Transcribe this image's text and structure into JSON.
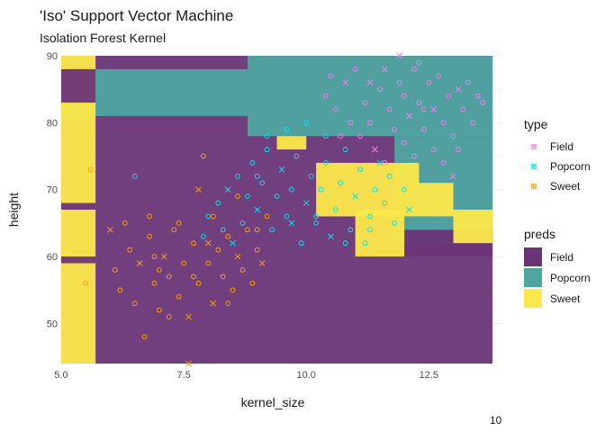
{
  "chart_data": {
    "type": "scatter",
    "title": "'Iso' Support Vector Machine",
    "subtitle": "Isolation Forest Kernel",
    "xlabel": "kernel_size",
    "ylabel": "height",
    "xlim": [
      5.0,
      14.0
    ],
    "ylim": [
      44,
      90
    ],
    "x_ticks": [
      5.0,
      7.5,
      10.0,
      12.5
    ],
    "x_tick_labels": [
      "5.0",
      "7.5",
      "10.0",
      "12.5"
    ],
    "y_ticks": [
      50,
      60,
      70,
      80,
      90
    ],
    "y_tick_labels": [
      "50",
      "60",
      "70",
      "80",
      "90"
    ],
    "grid": true,
    "footnote": "10",
    "legend_placement": "right",
    "legend_type": {
      "title": "type",
      "items": [
        {
          "label": "Field",
          "color": "#EE82EE"
        },
        {
          "label": "Popcorn",
          "color": "#00E5EE"
        },
        {
          "label": "Sweet",
          "color": "#FF9F00"
        }
      ]
    },
    "legend_preds": {
      "title": "preds",
      "items": [
        {
          "label": "Field",
          "color": "#6A3577"
        },
        {
          "label": "Popcorn",
          "color": "#4FA5A2"
        },
        {
          "label": "Sweet",
          "color": "#FCE84A"
        }
      ]
    },
    "regions": [
      {
        "pred": "Field",
        "x": [
          5.0,
          13.8
        ],
        "y": [
          44,
          90
        ]
      },
      {
        "pred": "Popcorn",
        "x": [
          5.0,
          8.8
        ],
        "y": [
          81,
          88
        ]
      },
      {
        "pred": "Popcorn",
        "x": [
          8.8,
          13.8
        ],
        "y": [
          78,
          90
        ]
      },
      {
        "pred": "Popcorn",
        "x": [
          11.8,
          13.8
        ],
        "y": [
          62,
          78
        ]
      },
      {
        "pred": "Field",
        "x": [
          12.0,
          13.8
        ],
        "y": [
          60,
          64
        ]
      },
      {
        "pred": "Sweet",
        "x": [
          5.0,
          5.7
        ],
        "y": [
          44,
          90
        ]
      },
      {
        "pred": "Field",
        "x": [
          5.0,
          5.7
        ],
        "y": [
          83,
          88
        ]
      },
      {
        "pred": "Field",
        "x": [
          5.0,
          5.7
        ],
        "y": [
          67,
          68
        ]
      },
      {
        "pred": "Field",
        "x": [
          5.0,
          5.7
        ],
        "y": [
          59,
          60
        ]
      },
      {
        "pred": "Sweet",
        "x": [
          10.2,
          12.3
        ],
        "y": [
          66,
          74
        ]
      },
      {
        "pred": "Sweet",
        "x": [
          11.0,
          12.0
        ],
        "y": [
          60,
          67
        ]
      },
      {
        "pred": "Sweet",
        "x": [
          12.3,
          13.0
        ],
        "y": [
          66,
          71
        ]
      },
      {
        "pred": "Sweet",
        "x": [
          13.0,
          13.8
        ],
        "y": [
          62,
          67
        ]
      },
      {
        "pred": "Sweet",
        "x": [
          9.4,
          10.0
        ],
        "y": [
          76,
          78
        ]
      }
    ],
    "series": [
      {
        "name": "Field",
        "color": "#EE82EE",
        "points": [
          [
            10.4,
            84
          ],
          [
            10.6,
            82
          ],
          [
            10.8,
            86
          ],
          [
            11.0,
            88
          ],
          [
            11.2,
            83
          ],
          [
            11.3,
            80
          ],
          [
            11.5,
            85
          ],
          [
            11.6,
            88
          ],
          [
            11.7,
            82
          ],
          [
            11.8,
            79
          ],
          [
            11.9,
            86
          ],
          [
            12.0,
            84
          ],
          [
            12.1,
            81
          ],
          [
            12.2,
            88
          ],
          [
            12.3,
            83
          ],
          [
            12.4,
            79
          ],
          [
            12.5,
            86
          ],
          [
            12.6,
            82
          ],
          [
            12.7,
            87
          ],
          [
            12.8,
            80
          ],
          [
            12.9,
            84
          ],
          [
            13.0,
            78
          ],
          [
            13.1,
            85
          ],
          [
            13.2,
            82
          ],
          [
            13.3,
            86
          ],
          [
            13.4,
            80
          ],
          [
            13.6,
            83
          ],
          [
            11.4,
            76
          ],
          [
            11.6,
            74
          ],
          [
            12.0,
            77
          ],
          [
            12.2,
            75
          ],
          [
            12.6,
            76
          ],
          [
            13.0,
            72
          ],
          [
            12.8,
            74
          ],
          [
            11.1,
            78
          ],
          [
            10.9,
            80
          ],
          [
            10.7,
            78
          ],
          [
            11.9,
            90
          ],
          [
            12.3,
            89
          ],
          [
            13.1,
            76
          ],
          [
            13.5,
            84
          ],
          [
            12.4,
            82
          ],
          [
            11.3,
            86
          ],
          [
            10.5,
            87
          ]
        ]
      },
      {
        "name": "Popcorn",
        "color": "#00E5EE",
        "points": [
          [
            8.0,
            66
          ],
          [
            8.2,
            68
          ],
          [
            8.4,
            70
          ],
          [
            8.6,
            72
          ],
          [
            8.7,
            65
          ],
          [
            8.8,
            69
          ],
          [
            8.9,
            74
          ],
          [
            9.0,
            67
          ],
          [
            9.1,
            71
          ],
          [
            9.2,
            76
          ],
          [
            9.3,
            64
          ],
          [
            9.4,
            69
          ],
          [
            9.5,
            73
          ],
          [
            9.6,
            66
          ],
          [
            9.7,
            70
          ],
          [
            9.8,
            75
          ],
          [
            9.9,
            62
          ],
          [
            10.0,
            68
          ],
          [
            10.1,
            72
          ],
          [
            10.2,
            65
          ],
          [
            10.3,
            70
          ],
          [
            10.4,
            74
          ],
          [
            10.5,
            63
          ],
          [
            10.6,
            67
          ],
          [
            10.7,
            71
          ],
          [
            10.8,
            76
          ],
          [
            10.9,
            64
          ],
          [
            11.0,
            69
          ],
          [
            11.1,
            73
          ],
          [
            11.2,
            62
          ],
          [
            11.3,
            66
          ],
          [
            11.4,
            70
          ],
          [
            11.5,
            74
          ],
          [
            11.6,
            68
          ],
          [
            11.7,
            72
          ],
          [
            11.8,
            65
          ],
          [
            12.0,
            70
          ],
          [
            12.1,
            67
          ],
          [
            9.2,
            78
          ],
          [
            9.6,
            79
          ],
          [
            10.0,
            80
          ],
          [
            10.4,
            78
          ],
          [
            8.5,
            62
          ],
          [
            8.3,
            64
          ],
          [
            7.9,
            63
          ],
          [
            6.5,
            72
          ],
          [
            9.0,
            72
          ],
          [
            9.7,
            65
          ],
          [
            10.2,
            66
          ],
          [
            10.8,
            62
          ],
          [
            11.3,
            64
          ]
        ]
      },
      {
        "name": "Sweet",
        "color": "#FF9F00",
        "points": [
          [
            5.5,
            56
          ],
          [
            5.6,
            73
          ],
          [
            6.0,
            64
          ],
          [
            6.1,
            58
          ],
          [
            6.2,
            55
          ],
          [
            6.4,
            61
          ],
          [
            6.5,
            53
          ],
          [
            6.6,
            59
          ],
          [
            6.7,
            48
          ],
          [
            6.8,
            63
          ],
          [
            6.9,
            56
          ],
          [
            7.0,
            52
          ],
          [
            7.1,
            60
          ],
          [
            7.2,
            57
          ],
          [
            7.3,
            64
          ],
          [
            7.4,
            54
          ],
          [
            7.5,
            59
          ],
          [
            7.6,
            51
          ],
          [
            7.7,
            62
          ],
          [
            7.8,
            56
          ],
          [
            7.9,
            75
          ],
          [
            8.0,
            59
          ],
          [
            8.1,
            53
          ],
          [
            8.2,
            61
          ],
          [
            8.3,
            57
          ],
          [
            8.4,
            63
          ],
          [
            8.5,
            55
          ],
          [
            8.6,
            60
          ],
          [
            8.7,
            58
          ],
          [
            8.8,
            64
          ],
          [
            8.9,
            56
          ],
          [
            9.0,
            61
          ],
          [
            9.1,
            59
          ],
          [
            9.2,
            66
          ],
          [
            6.3,
            65
          ],
          [
            7.0,
            58
          ],
          [
            7.4,
            65
          ],
          [
            7.8,
            70
          ],
          [
            8.1,
            66
          ],
          [
            8.6,
            69
          ],
          [
            6.8,
            66
          ],
          [
            7.2,
            51
          ],
          [
            7.6,
            44
          ],
          [
            8.4,
            53
          ],
          [
            9.0,
            64
          ],
          [
            6.9,
            60
          ],
          [
            7.7,
            57
          ],
          [
            8.0,
            62
          ]
        ]
      }
    ]
  }
}
